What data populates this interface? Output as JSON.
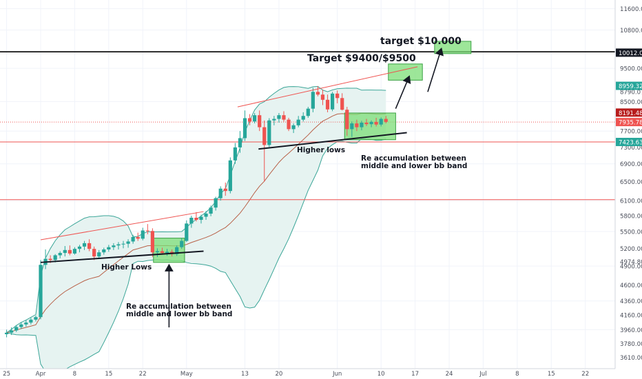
{
  "chart_data": {
    "type": "candlestick",
    "title": "",
    "xlabel": "",
    "ylabel": "",
    "y_scale": "log",
    "ylim": [
      3500,
      12000
    ],
    "y_ticks": [
      "11600.00",
      "10800.00",
      "10040.72",
      "10012.06",
      "9500.00",
      "8959.32",
      "8790.07",
      "8500.00",
      "8191.48",
      "7935.78",
      "7700.00",
      "7423.63",
      "7300.00",
      "6900.00",
      "6500.00",
      "6100.00",
      "5800.00",
      "5500.00",
      "5200.00",
      "4974.80",
      "4900.00",
      "4600.00",
      "4360.00",
      "4160.00",
      "3960.00",
      "3780.00",
      "3610.00"
    ],
    "price_labels": [
      {
        "label": "10012.06",
        "value": 10012.06,
        "bg": "#131722",
        "fg": "#ffffff"
      },
      {
        "label": "8959.32",
        "value": 8959.32,
        "bg": "#26a69a",
        "fg": "#ffffff"
      },
      {
        "label": "8191.48",
        "value": 8191.48,
        "bg": "#b71c1c",
        "fg": "#ffffff"
      },
      {
        "label": "7935.78",
        "value": 7935.78,
        "bg": "#ef5350",
        "fg": "#ffffff"
      },
      {
        "label": "7423.63",
        "value": 7423.63,
        "bg": "#26a69a",
        "fg": "#ffffff"
      }
    ],
    "x_ticks": [
      {
        "label": "25",
        "day": -7
      },
      {
        "label": "Apr",
        "day": 0
      },
      {
        "label": "8",
        "day": 7
      },
      {
        "label": "15",
        "day": 14
      },
      {
        "label": "22",
        "day": 21
      },
      {
        "label": "May",
        "day": 30
      },
      {
        "label": "13",
        "day": 42
      },
      {
        "label": "20",
        "day": 49
      },
      {
        "label": "Jun",
        "day": 61
      },
      {
        "label": "10",
        "day": 70
      },
      {
        "label": "17",
        "day": 77
      },
      {
        "label": "24",
        "day": 84
      },
      {
        "label": "Jul",
        "day": 91
      },
      {
        "label": "8",
        "day": 98
      },
      {
        "label": "15",
        "day": 105
      },
      {
        "label": "22",
        "day": 112
      }
    ],
    "x_range_days": [
      -7.5,
      116.5
    ],
    "candles": [
      [
        -7,
        3900,
        3960,
        3860,
        3920
      ],
      [
        -6,
        3920,
        3990,
        3890,
        3950
      ],
      [
        -5,
        3950,
        4020,
        3930,
        3995
      ],
      [
        -4,
        3995,
        4060,
        3970,
        4030
      ],
      [
        -3,
        4030,
        4090,
        4000,
        4055
      ],
      [
        -2,
        4055,
        4120,
        4030,
        4095
      ],
      [
        -1,
        4095,
        4150,
        4070,
        4130
      ],
      [
        0,
        4130,
        5000,
        4100,
        4920
      ],
      [
        1,
        4920,
        5180,
        4850,
        5020
      ],
      [
        2,
        5020,
        5080,
        4950,
        5000
      ],
      [
        3,
        5000,
        5100,
        4960,
        5080
      ],
      [
        4,
        5080,
        5150,
        5030,
        5120
      ],
      [
        5,
        5120,
        5240,
        5060,
        5170
      ],
      [
        6,
        5170,
        5250,
        5080,
        5110
      ],
      [
        7,
        5110,
        5220,
        5090,
        5190
      ],
      [
        8,
        5190,
        5260,
        5130,
        5230
      ],
      [
        9,
        5230,
        5330,
        5170,
        5290
      ],
      [
        10,
        5290,
        5360,
        5150,
        5190
      ],
      [
        11,
        5190,
        5230,
        5000,
        5060
      ],
      [
        12,
        5060,
        5170,
        5020,
        5130
      ],
      [
        13,
        5130,
        5210,
        5090,
        5180
      ],
      [
        14,
        5180,
        5260,
        5140,
        5220
      ],
      [
        15,
        5220,
        5290,
        5170,
        5250
      ],
      [
        16,
        5250,
        5310,
        5180,
        5270
      ],
      [
        17,
        5270,
        5330,
        5200,
        5280
      ],
      [
        18,
        5280,
        5360,
        5210,
        5320
      ],
      [
        19,
        5320,
        5440,
        5280,
        5400
      ],
      [
        20,
        5400,
        5480,
        5330,
        5370
      ],
      [
        21,
        5370,
        5570,
        5340,
        5520
      ],
      [
        22,
        5520,
        5640,
        5450,
        5510
      ],
      [
        23,
        5510,
        5560,
        5050,
        5130
      ],
      [
        24,
        5130,
        5200,
        5050,
        5150
      ],
      [
        25,
        5150,
        5210,
        5090,
        5120
      ],
      [
        26,
        5120,
        5190,
        5070,
        5140
      ],
      [
        27,
        5140,
        5180,
        5060,
        5100
      ],
      [
        28,
        5100,
        5250,
        5070,
        5220
      ],
      [
        29,
        5220,
        5380,
        5190,
        5330
      ],
      [
        30,
        5330,
        5710,
        5310,
        5650
      ],
      [
        31,
        5650,
        5800,
        5570,
        5760
      ],
      [
        32,
        5760,
        5870,
        5690,
        5720
      ],
      [
        33,
        5720,
        5820,
        5650,
        5780
      ],
      [
        34,
        5780,
        5890,
        5720,
        5840
      ],
      [
        35,
        5840,
        6000,
        5790,
        5960
      ],
      [
        36,
        5960,
        6180,
        5900,
        6150
      ],
      [
        37,
        6150,
        6400,
        6100,
        6350
      ],
      [
        38,
        6350,
        6480,
        6200,
        6300
      ],
      [
        39,
        6300,
        7050,
        6250,
        6980
      ],
      [
        40,
        6980,
        7400,
        6900,
        7290
      ],
      [
        41,
        7290,
        7700,
        7160,
        7520
      ],
      [
        42,
        7520,
        8250,
        7450,
        8040
      ],
      [
        43,
        8040,
        8150,
        7850,
        7950
      ],
      [
        44,
        7950,
        8180,
        7900,
        8120
      ],
      [
        45,
        8120,
        8250,
        7700,
        7800
      ],
      [
        46,
        7800,
        7980,
        6500,
        7350
      ],
      [
        47,
        7350,
        8040,
        7300,
        7980
      ],
      [
        48,
        7980,
        8100,
        7850,
        8020
      ],
      [
        49,
        8020,
        8180,
        7920,
        8120
      ],
      [
        50,
        8120,
        8230,
        7950,
        8000
      ],
      [
        51,
        8000,
        8050,
        7700,
        7750
      ],
      [
        52,
        7750,
        7900,
        7650,
        7850
      ],
      [
        53,
        7850,
        8100,
        7800,
        8000
      ],
      [
        54,
        8000,
        8200,
        7950,
        8100
      ],
      [
        55,
        8100,
        8350,
        8050,
        8300
      ],
      [
        56,
        8300,
        8900,
        8200,
        8780
      ],
      [
        57,
        8780,
        8950,
        8650,
        8700
      ],
      [
        58,
        8700,
        8850,
        8400,
        8550
      ],
      [
        59,
        8550,
        8700,
        8200,
        8280
      ],
      [
        60,
        8280,
        8780,
        8230,
        8730
      ],
      [
        61,
        8730,
        8820,
        8450,
        8600
      ],
      [
        62,
        8600,
        8740,
        8250,
        8270
      ],
      [
        63,
        8270,
        8350,
        7580,
        7750
      ],
      [
        64,
        7750,
        7950,
        7550,
        7900
      ],
      [
        65,
        7900,
        8000,
        7700,
        7800
      ],
      [
        66,
        7800,
        7970,
        7720,
        7920
      ],
      [
        67,
        7920,
        8020,
        7830,
        7880
      ],
      [
        68,
        7880,
        7980,
        7800,
        7940
      ],
      [
        69,
        7940,
        8050,
        7820,
        7870
      ],
      [
        70,
        7870,
        8060,
        7820,
        8020
      ],
      [
        71,
        8020,
        8100,
        7900,
        7940
      ]
    ],
    "colors": {
      "up": "#26a69a",
      "down": "#ef5350",
      "band_fill": "#e6f3f1",
      "band_line": "#3aa597",
      "basis": "#b86148",
      "grid": "#f0f3fa",
      "axis_text": "#4a4e5a",
      "box_fill": "#7cde77",
      "box_edge": "#3aa043"
    },
    "horizontal_lines": [
      {
        "value": 10040.72,
        "color": "#000000"
      },
      {
        "value": 7935.78,
        "color": "#ef5350",
        "dashed": true
      },
      {
        "value": 7423.63,
        "color": "#ef5350"
      },
      {
        "value": 6120,
        "color": "#ef5350"
      }
    ],
    "annotations": [
      {
        "id": "target-10000",
        "text": "target $10.000"
      },
      {
        "id": "target-9400",
        "text": "Target $9400/$9500"
      },
      {
        "id": "higher-lows-1",
        "text": "Higher Lows"
      },
      {
        "id": "higher-lows-2",
        "text": "Higher lows"
      },
      {
        "id": "reacc-1",
        "lines": [
          "Re accumulation between",
          "middle and lower bb band"
        ]
      },
      {
        "id": "reacc-2",
        "lines": [
          "Re accumulation between",
          "middle and lower bb band"
        ]
      }
    ]
  }
}
